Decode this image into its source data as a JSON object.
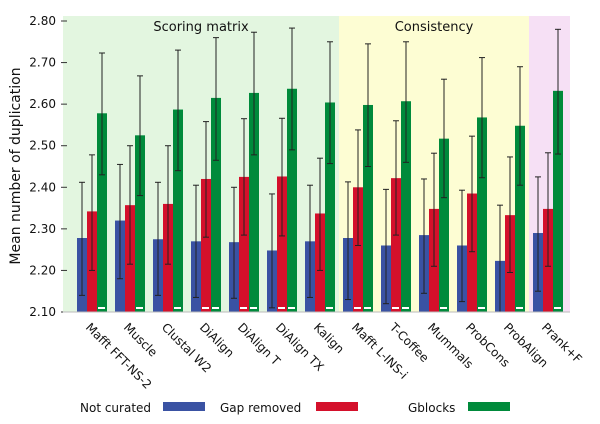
{
  "chart_data": {
    "type": "bar",
    "title": "",
    "xlabel": "",
    "ylabel": "Mean number of duplication",
    "ylim": [
      2.1,
      2.8
    ],
    "yticks": [
      "2.10",
      "2.20",
      "2.30",
      "2.40",
      "2.50",
      "2.60",
      "2.70",
      "2.80"
    ],
    "categories": [
      "Mafft FFT-NS-2",
      "Muscle",
      "Clustal W2",
      "DiAlign",
      "DiAlign T",
      "DiAlign TX",
      "Kalign",
      "Mafft L-INS-i",
      "T-Coffee",
      "Mummals",
      "ProbCons",
      "ProbAlign",
      "Prank+F"
    ],
    "regions": [
      {
        "label": "Scoring matrix",
        "from": 0,
        "to": 6,
        "color": "#e3f6e0"
      },
      {
        "label": "Consistency",
        "from": 7,
        "to": 11,
        "color": "#fdfdd3"
      },
      {
        "label": "",
        "from": 12,
        "to": 12,
        "color": "#f6e0f5"
      }
    ],
    "series": [
      {
        "name": "Not curated",
        "color": "#3a52a3",
        "values": [
          2.278,
          2.32,
          2.275,
          2.27,
          2.268,
          2.248,
          2.27,
          2.278,
          2.26,
          2.285,
          2.26,
          2.223,
          2.29
        ],
        "err_low": [
          2.14,
          2.18,
          2.14,
          2.135,
          2.133,
          2.11,
          2.135,
          2.13,
          2.12,
          2.145,
          2.125,
          2.1,
          2.15
        ],
        "err_high": [
          2.412,
          2.455,
          2.412,
          2.405,
          2.4,
          2.384,
          2.405,
          2.413,
          2.395,
          2.42,
          2.393,
          2.357,
          2.425
        ]
      },
      {
        "name": "Gap removed",
        "color": "#d4102b",
        "values": [
          2.342,
          2.357,
          2.36,
          2.42,
          2.425,
          2.426,
          2.337,
          2.4,
          2.422,
          2.348,
          2.385,
          2.333,
          2.348
        ],
        "err_low": [
          2.2,
          2.215,
          2.215,
          2.28,
          2.285,
          2.283,
          2.2,
          2.26,
          2.285,
          2.21,
          2.245,
          2.195,
          2.21
        ],
        "err_high": [
          2.478,
          2.5,
          2.5,
          2.558,
          2.565,
          2.566,
          2.47,
          2.538,
          2.56,
          2.482,
          2.523,
          2.473,
          2.483
        ]
      },
      {
        "name": "Gblocks",
        "color": "#008a3b",
        "values": [
          2.578,
          2.525,
          2.587,
          2.615,
          2.627,
          2.637,
          2.604,
          2.598,
          2.607,
          2.517,
          2.568,
          2.548,
          2.632
        ],
        "err_low": [
          2.43,
          2.38,
          2.44,
          2.465,
          2.478,
          2.49,
          2.457,
          2.45,
          2.46,
          2.375,
          2.423,
          2.405,
          2.48
        ],
        "err_high": [
          2.723,
          2.668,
          2.73,
          2.76,
          2.773,
          2.783,
          2.75,
          2.745,
          2.75,
          2.66,
          2.712,
          2.69,
          2.78
        ]
      }
    ],
    "significance_marks": [
      1,
      1,
      1,
      2,
      2,
      2,
      1,
      2,
      2,
      1,
      1,
      1,
      1
    ],
    "legend_position": "bottom",
    "grid": false
  }
}
